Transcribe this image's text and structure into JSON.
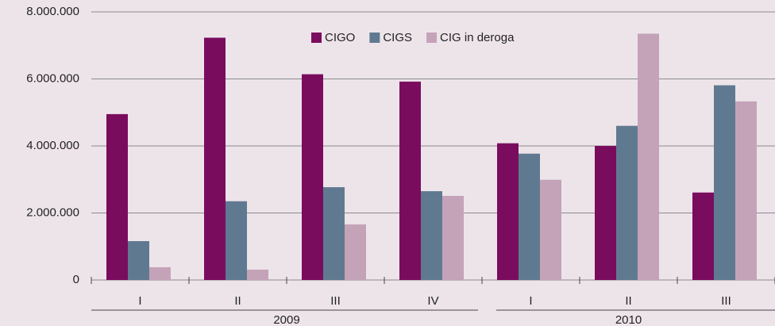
{
  "chart_data": {
    "type": "bar",
    "categories": [
      "I",
      "II",
      "III",
      "IV",
      "I",
      "II",
      "III"
    ],
    "category_years": [
      "2009",
      "2009",
      "2009",
      "2009",
      "2010",
      "2010",
      "2010"
    ],
    "series": [
      {
        "name": "CIGO",
        "color": "#7a0c5e",
        "values": [
          4950000,
          7230000,
          6140000,
          5920000,
          4080000,
          4000000,
          2610000
        ]
      },
      {
        "name": "CIGS",
        "color": "#5f7a90",
        "values": [
          1160000,
          2350000,
          2770000,
          2650000,
          3770000,
          4600000,
          5810000
        ]
      },
      {
        "name": "CIG in deroga",
        "color": "#c4a3b8",
        "values": [
          380000,
          310000,
          1660000,
          2510000,
          2990000,
          7350000,
          5330000
        ]
      }
    ],
    "ylim": [
      0,
      8000000
    ],
    "yticks": [
      0,
      {
        "value": 2000000,
        "label": "2.000.000"
      },
      {
        "value": 4000000,
        "label": "4.000.000"
      },
      {
        "value": 6000000,
        "label": "6.000.000"
      },
      {
        "value": 8000000,
        "label": "8.000.000"
      }
    ],
    "grid": true,
    "legend": "top"
  }
}
